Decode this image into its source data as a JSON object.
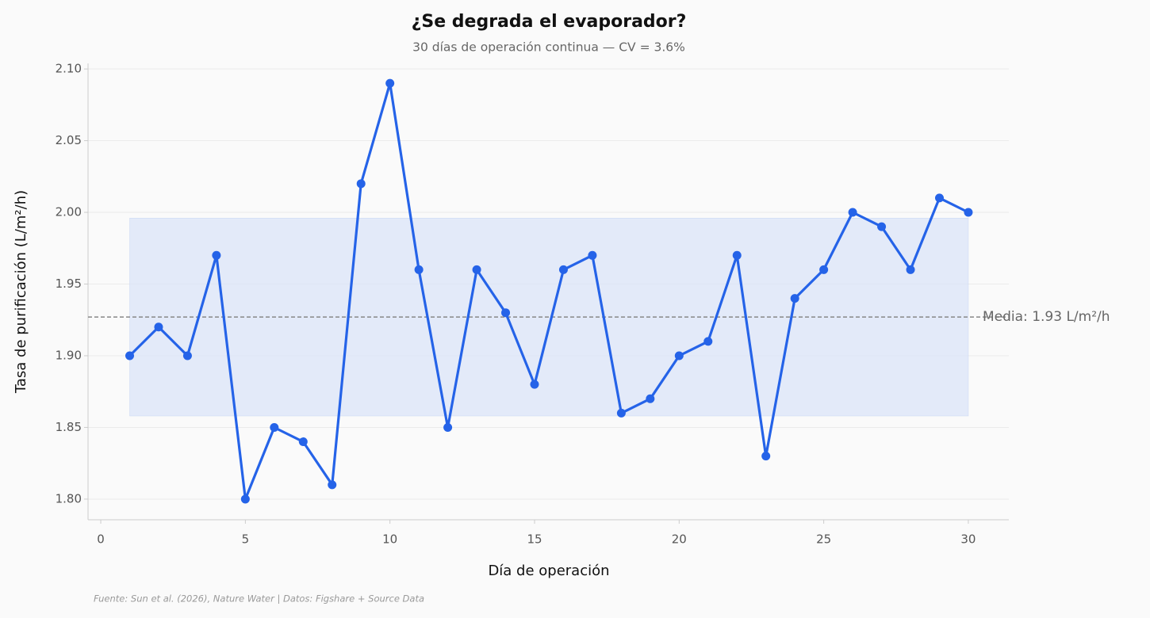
{
  "chart_data": {
    "type": "line",
    "title": "¿Se degrada el evaporador?",
    "subtitle": "30 días de operación continua — CV = 3.6%",
    "x_label": "Día de operación",
    "y_label": "Tasa de purificación (L/m²/h)",
    "source": "Fuente: Sun et al. (2026), Nature Water | Datos: Figshare + Source Data",
    "x": [
      1,
      2,
      3,
      4,
      5,
      6,
      7,
      8,
      9,
      10,
      11,
      12,
      13,
      14,
      15,
      16,
      17,
      18,
      19,
      20,
      21,
      22,
      23,
      24,
      25,
      26,
      27,
      28,
      29,
      30
    ],
    "values": [
      1.9,
      1.92,
      1.9,
      1.97,
      1.8,
      1.85,
      1.84,
      1.81,
      2.02,
      2.09,
      1.96,
      1.85,
      1.96,
      1.93,
      1.88,
      1.96,
      1.97,
      1.86,
      1.87,
      1.9,
      1.91,
      1.97,
      1.83,
      1.94,
      1.96,
      2.0,
      1.99,
      1.96,
      2.01,
      2.0
    ],
    "color": "#2563e8",
    "mean_line": {
      "value": 1.927,
      "label": "Media: 1.93 L/m²/h",
      "color": "#888888"
    },
    "band": {
      "xlim": [
        1,
        30
      ],
      "ylim": [
        1.858,
        1.996
      ],
      "color": "#dbe4f8"
    },
    "xlim": [
      -0.44,
      31.4
    ],
    "ylim": [
      1.7856,
      2.1039
    ],
    "xticks": [
      0,
      5,
      10,
      15,
      20,
      25,
      30
    ],
    "yticks": [
      {
        "value": 1.8,
        "label": "1.80"
      },
      {
        "value": 1.85,
        "label": "1.85"
      },
      {
        "value": 1.9,
        "label": "1.90"
      },
      {
        "value": 1.95,
        "label": "1.95"
      },
      {
        "value": 2.0,
        "label": "2.00"
      },
      {
        "value": 2.05,
        "label": "2.05"
      },
      {
        "value": 2.1,
        "label": "2.10"
      }
    ],
    "grid": true
  }
}
